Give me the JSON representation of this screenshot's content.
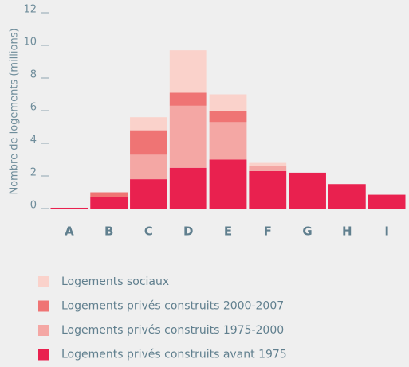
{
  "chart_data": {
    "type": "bar",
    "stacked": true,
    "y_label": "Nombre de logements (millions)",
    "categories": [
      "A",
      "B",
      "C",
      "D",
      "E",
      "F",
      "G",
      "H",
      "I"
    ],
    "series": [
      {
        "name": "Logements privés construits avant 1975",
        "color": "#e9214f",
        "values": [
          0.05,
          0.7,
          1.8,
          2.5,
          3.0,
          2.3,
          2.2,
          1.5,
          0.85
        ]
      },
      {
        "name": "Logements privés construits 1975-2000",
        "color": "#f4a7a4",
        "values": [
          0,
          0,
          1.5,
          3.8,
          2.3,
          0.3,
          0,
          0,
          0
        ]
      },
      {
        "name": "Logements privés construits 2000-2007",
        "color": "#ef7474",
        "values": [
          0,
          0.3,
          1.5,
          0.8,
          0.7,
          0,
          0,
          0,
          0
        ]
      },
      {
        "name": "Logements sociaux",
        "color": "#fad2cb",
        "values": [
          0,
          0,
          0.8,
          2.6,
          1.0,
          0.2,
          0,
          0,
          0
        ]
      }
    ],
    "ylim": [
      0,
      12
    ],
    "yticks": [
      0,
      2,
      4,
      6,
      8,
      10,
      12
    ]
  }
}
